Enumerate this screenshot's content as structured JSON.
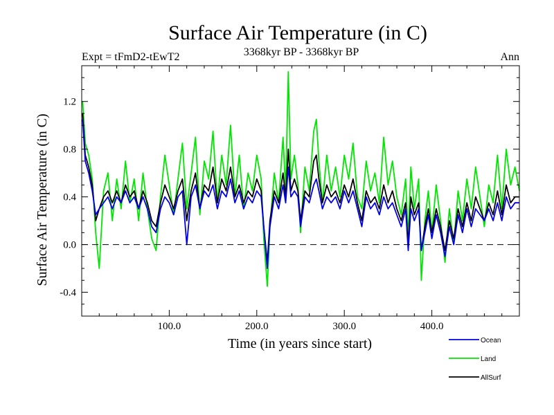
{
  "chart_data": {
    "type": "line",
    "title": "Surface Air Temperature (in C)",
    "subtitle_left": "Expt = tFmD2-tEwT2",
    "subtitle_center": "3368kyr BP - 3368kyr BP",
    "subtitle_right": "Ann",
    "xlabel": "Time (in years since start)",
    "ylabel": "Surface Air Temperature (in C)",
    "xlim": [
      0,
      500
    ],
    "ylim": [
      -0.6,
      1.5
    ],
    "x_ticks": [
      100,
      200,
      300,
      400
    ],
    "x_tick_labels": [
      "100.0",
      "200.0",
      "300.0",
      "400.0"
    ],
    "y_ticks": [
      -0.4,
      0.0,
      0.4,
      0.8,
      1.2
    ],
    "y_tick_labels": [
      "-0.4",
      "0.0",
      "0.4",
      "0.8",
      "1.2"
    ],
    "zero_line": {
      "value": 0.0,
      "style": "dashed"
    },
    "series": [
      {
        "name": "Land",
        "color": "#00e600",
        "x": [
          1,
          4,
          8,
          12,
          16,
          20,
          25,
          30,
          35,
          40,
          45,
          50,
          55,
          60,
          65,
          70,
          75,
          80,
          85,
          90,
          95,
          100,
          105,
          110,
          115,
          120,
          125,
          130,
          135,
          140,
          145,
          150,
          155,
          160,
          165,
          170,
          175,
          180,
          185,
          190,
          195,
          200,
          205,
          208,
          212,
          215,
          220,
          225,
          230,
          233,
          236,
          239,
          243,
          247,
          250,
          255,
          260,
          265,
          268,
          271,
          275,
          280,
          285,
          290,
          295,
          300,
          305,
          310,
          315,
          320,
          325,
          330,
          335,
          340,
          345,
          350,
          355,
          360,
          365,
          370,
          373,
          376,
          380,
          385,
          388,
          392,
          396,
          400,
          405,
          410,
          415,
          420,
          425,
          430,
          435,
          440,
          445,
          450,
          455,
          460,
          465,
          470,
          475,
          480,
          485,
          490,
          495,
          500
        ],
        "values": [
          1.2,
          0.85,
          0.75,
          0.55,
          0.1,
          -0.2,
          0.45,
          0.6,
          0.2,
          0.55,
          0.3,
          0.7,
          0.35,
          0.55,
          0.2,
          0.6,
          0.3,
          0.05,
          -0.05,
          0.4,
          0.75,
          0.5,
          0.25,
          0.55,
          0.85,
          0.3,
          0.6,
          0.9,
          0.25,
          0.7,
          0.55,
          0.95,
          0.35,
          0.75,
          0.5,
          1.0,
          0.4,
          0.75,
          0.3,
          0.6,
          0.45,
          0.75,
          0.55,
          0.05,
          -0.35,
          0.15,
          0.6,
          0.35,
          0.9,
          0.45,
          1.45,
          0.55,
          0.75,
          0.5,
          0.1,
          0.65,
          0.45,
          0.95,
          1.05,
          0.7,
          0.35,
          0.75,
          0.45,
          0.65,
          0.4,
          0.75,
          0.55,
          0.85,
          0.4,
          0.3,
          0.7,
          0.45,
          0.6,
          0.35,
          0.9,
          0.5,
          0.7,
          0.4,
          0.25,
          0.55,
          0.05,
          0.65,
          0.3,
          0.55,
          -0.3,
          0.2,
          0.45,
          0.1,
          0.5,
          0.2,
          -0.15,
          0.3,
          0.0,
          0.45,
          0.2,
          0.55,
          0.3,
          0.65,
          0.4,
          0.15,
          0.5,
          0.35,
          0.75,
          0.3,
          0.8,
          0.5,
          0.65,
          0.45
        ],
        "legend": "Land"
      },
      {
        "name": "AllSurf",
        "color": "#000000",
        "x": [
          1,
          4,
          8,
          12,
          16,
          20,
          25,
          30,
          35,
          40,
          45,
          50,
          55,
          60,
          65,
          70,
          75,
          80,
          85,
          90,
          95,
          100,
          105,
          110,
          115,
          120,
          125,
          130,
          135,
          140,
          145,
          150,
          155,
          160,
          165,
          170,
          175,
          180,
          185,
          190,
          195,
          200,
          205,
          208,
          212,
          215,
          220,
          225,
          230,
          233,
          236,
          239,
          243,
          247,
          250,
          255,
          260,
          265,
          268,
          271,
          275,
          280,
          285,
          290,
          295,
          300,
          305,
          310,
          315,
          320,
          325,
          330,
          335,
          340,
          345,
          350,
          355,
          360,
          365,
          370,
          373,
          376,
          380,
          385,
          388,
          392,
          396,
          400,
          405,
          410,
          415,
          420,
          425,
          430,
          435,
          440,
          445,
          450,
          455,
          460,
          465,
          470,
          475,
          480,
          485,
          490,
          495,
          500
        ],
        "values": [
          1.1,
          0.75,
          0.65,
          0.5,
          0.2,
          0.3,
          0.4,
          0.45,
          0.35,
          0.45,
          0.35,
          0.5,
          0.4,
          0.45,
          0.3,
          0.45,
          0.35,
          0.2,
          0.15,
          0.35,
          0.5,
          0.4,
          0.3,
          0.45,
          0.55,
          0.2,
          0.45,
          0.6,
          0.3,
          0.5,
          0.45,
          0.65,
          0.35,
          0.55,
          0.45,
          0.65,
          0.4,
          0.5,
          0.35,
          0.45,
          0.4,
          0.55,
          0.45,
          0.15,
          -0.15,
          0.2,
          0.45,
          0.35,
          0.6,
          0.4,
          0.8,
          0.45,
          0.55,
          0.45,
          0.2,
          0.45,
          0.4,
          0.7,
          0.75,
          0.55,
          0.35,
          0.5,
          0.4,
          0.45,
          0.35,
          0.5,
          0.4,
          0.55,
          0.35,
          0.2,
          0.45,
          0.35,
          0.4,
          0.3,
          0.5,
          0.35,
          0.45,
          0.3,
          0.2,
          0.35,
          0.0,
          0.4,
          0.25,
          0.35,
          -0.05,
          0.15,
          0.3,
          0.1,
          0.3,
          0.15,
          -0.05,
          0.2,
          0.05,
          0.3,
          0.15,
          0.35,
          0.2,
          0.4,
          0.3,
          0.2,
          0.35,
          0.25,
          0.45,
          0.25,
          0.5,
          0.35,
          0.4,
          0.4
        ],
        "legend": "AllSurf"
      },
      {
        "name": "Ocean",
        "color": "#0000e6",
        "x": [
          1,
          4,
          8,
          12,
          16,
          20,
          25,
          30,
          35,
          40,
          45,
          50,
          55,
          60,
          65,
          70,
          75,
          80,
          85,
          90,
          95,
          100,
          105,
          110,
          115,
          120,
          125,
          130,
          135,
          140,
          145,
          150,
          155,
          160,
          165,
          170,
          175,
          180,
          185,
          190,
          195,
          200,
          205,
          208,
          212,
          215,
          220,
          225,
          230,
          233,
          236,
          239,
          243,
          247,
          250,
          255,
          260,
          265,
          268,
          271,
          275,
          280,
          285,
          290,
          295,
          300,
          305,
          310,
          315,
          320,
          325,
          330,
          335,
          340,
          345,
          350,
          355,
          360,
          365,
          370,
          373,
          376,
          380,
          385,
          388,
          392,
          396,
          400,
          405,
          410,
          415,
          420,
          425,
          430,
          435,
          440,
          445,
          450,
          455,
          460,
          465,
          470,
          475,
          480,
          485,
          490,
          495,
          500
        ],
        "values": [
          1.05,
          0.7,
          0.6,
          0.45,
          0.25,
          0.3,
          0.35,
          0.4,
          0.3,
          0.4,
          0.35,
          0.45,
          0.35,
          0.4,
          0.3,
          0.4,
          0.3,
          0.15,
          0.1,
          0.3,
          0.4,
          0.35,
          0.25,
          0.4,
          0.45,
          0.0,
          0.4,
          0.5,
          0.3,
          0.45,
          0.4,
          0.5,
          0.3,
          0.45,
          0.4,
          0.55,
          0.35,
          0.45,
          0.3,
          0.4,
          0.35,
          0.45,
          0.4,
          0.15,
          -0.2,
          0.15,
          0.4,
          0.3,
          0.5,
          0.35,
          0.65,
          0.4,
          0.45,
          0.4,
          0.15,
          0.4,
          0.35,
          0.5,
          0.55,
          0.45,
          0.3,
          0.4,
          0.35,
          0.4,
          0.3,
          0.45,
          0.35,
          0.45,
          0.3,
          0.15,
          0.4,
          0.3,
          0.35,
          0.25,
          0.4,
          0.3,
          0.35,
          0.25,
          0.15,
          0.3,
          -0.05,
          0.3,
          0.2,
          0.3,
          -0.05,
          0.1,
          0.25,
          0.05,
          0.25,
          0.1,
          -0.1,
          0.15,
          0.0,
          0.25,
          0.1,
          0.3,
          0.15,
          0.3,
          0.25,
          0.2,
          0.3,
          0.2,
          0.35,
          0.2,
          0.4,
          0.3,
          0.35,
          0.35
        ],
        "legend": "Ocean"
      }
    ],
    "legend_position": "bottom-right",
    "legend_order": [
      "Ocean",
      "Land",
      "AllSurf"
    ]
  }
}
